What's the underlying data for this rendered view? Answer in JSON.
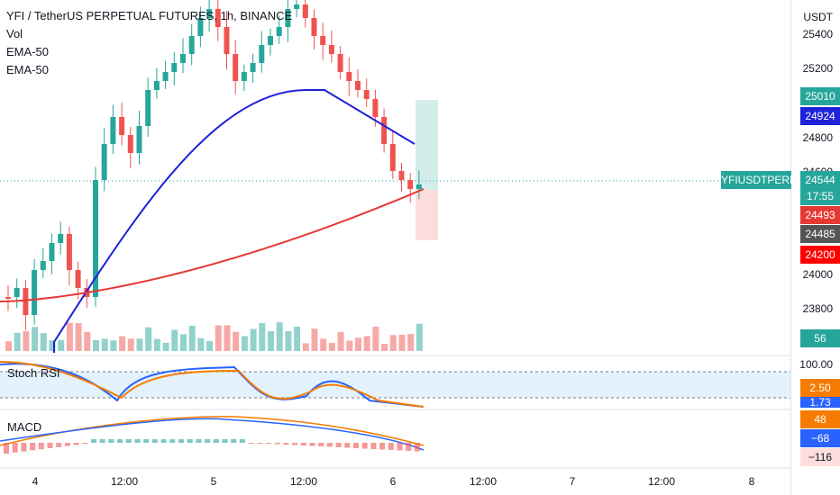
{
  "title_line": "YFI / TetherUS PERPETUAL FUTURES, 1h, BINANCE",
  "indicators": [
    "Vol",
    "EMA-50",
    "EMA-50"
  ],
  "currency": "USDT",
  "price_axis": [
    "25400",
    "25200",
    "24800",
    "24600",
    "24000",
    "23800"
  ],
  "price_tags": {
    "target": "25010",
    "ema_blue": "24924",
    "symbol_label": "YFIUSDTPERP",
    "last": "24544",
    "countdown": "17:55",
    "ema_red": "24493",
    "extra": "24485",
    "stop": "24200",
    "volume": "56"
  },
  "stoch": {
    "label": "Stoch RSI",
    "top": "100.00",
    "k": "2.50",
    "d": "1.73"
  },
  "macd": {
    "label": "MACD",
    "v1": "48",
    "v2": "−68",
    "v3": "−116"
  },
  "time_axis": [
    "4",
    "12:00",
    "5",
    "12:00",
    "6",
    "12:00",
    "7",
    "12:00",
    "8"
  ],
  "colors": {
    "up": "#26a69a",
    "down": "#ef5350",
    "ema_blue": "#1e22d8",
    "ema_red": "#e53935",
    "macd_signal": "#f57c00",
    "macd_line": "#2962ff"
  }
}
